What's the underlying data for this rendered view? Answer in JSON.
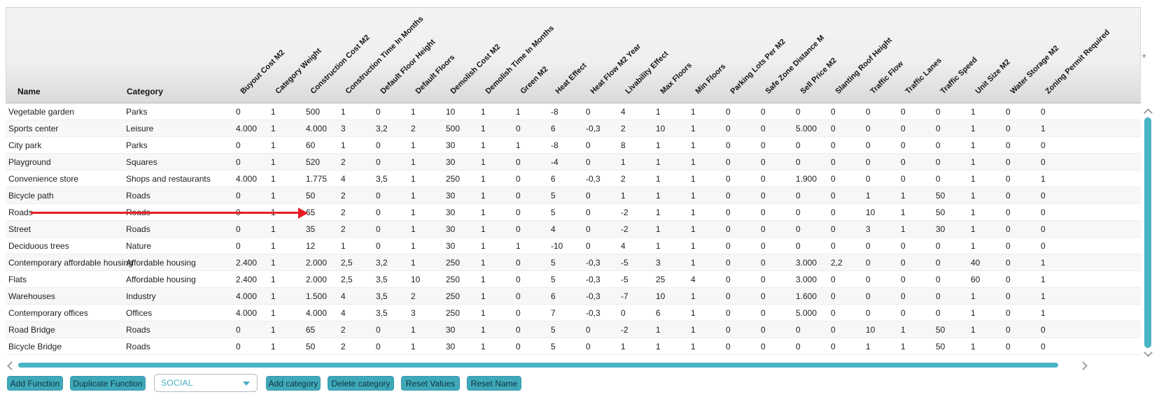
{
  "grid": {
    "name_header": "Name",
    "category_header": "Category",
    "columns": [
      "Buyout Cost M2",
      "Category Weight",
      "Construction Cost M2",
      "Construction Time In Months",
      "Default Floor Height",
      "Default Floors",
      "Demolish Cost M2",
      "Demolish Time In Months",
      "Green M2",
      "Heat Effect",
      "Heat Flow M2 Year",
      "Livability Effect",
      "Max Floors",
      "Min Floors",
      "Parking Lots Per M2",
      "Safe Zone Distance M",
      "Sell Price M2",
      "Slanting Roof Height",
      "Traffic Flow",
      "Traffic Lanes",
      "Traffic Speed",
      "Unit Size M2",
      "Water Storage M2",
      "Zoning Permit Required"
    ],
    "rows": [
      {
        "name": "Vegetable garden",
        "category": "Parks",
        "values": [
          "0",
          "1",
          "500",
          "1",
          "0",
          "1",
          "10",
          "1",
          "1",
          "-8",
          "0",
          "4",
          "1",
          "1",
          "0",
          "0",
          "0",
          "0",
          "0",
          "0",
          "0",
          "1",
          "0",
          "0"
        ]
      },
      {
        "name": "Sports center",
        "category": "Leisure",
        "values": [
          "4.000",
          "1",
          "4.000",
          "3",
          "3,2",
          "2",
          "500",
          "1",
          "0",
          "6",
          "-0,3",
          "2",
          "10",
          "1",
          "0",
          "0",
          "5.000",
          "0",
          "0",
          "0",
          "0",
          "1",
          "0",
          "1"
        ]
      },
      {
        "name": "City park",
        "category": "Parks",
        "values": [
          "0",
          "1",
          "60",
          "1",
          "0",
          "1",
          "30",
          "1",
          "1",
          "-8",
          "0",
          "8",
          "1",
          "1",
          "0",
          "0",
          "0",
          "0",
          "0",
          "0",
          "0",
          "1",
          "0",
          "0"
        ]
      },
      {
        "name": "Playground",
        "category": "Squares",
        "values": [
          "0",
          "1",
          "520",
          "2",
          "0",
          "1",
          "30",
          "1",
          "0",
          "-4",
          "0",
          "1",
          "1",
          "1",
          "0",
          "0",
          "0",
          "0",
          "0",
          "0",
          "0",
          "1",
          "0",
          "0"
        ]
      },
      {
        "name": "Convenience store",
        "category": "Shops and restaurants",
        "values": [
          "4.000",
          "1",
          "1.775",
          "4",
          "3,5",
          "1",
          "250",
          "1",
          "0",
          "6",
          "-0,3",
          "2",
          "1",
          "1",
          "0",
          "0",
          "1.900",
          "0",
          "0",
          "0",
          "0",
          "1",
          "0",
          "1"
        ]
      },
      {
        "name": "Bicycle path",
        "category": "Roads",
        "values": [
          "0",
          "1",
          "50",
          "2",
          "0",
          "1",
          "30",
          "1",
          "0",
          "5",
          "0",
          "1",
          "1",
          "1",
          "0",
          "0",
          "0",
          "0",
          "1",
          "1",
          "50",
          "1",
          "0",
          "0"
        ]
      },
      {
        "name": "Roads",
        "category": "Roads",
        "values": [
          "0",
          "1",
          "65",
          "2",
          "0",
          "1",
          "30",
          "1",
          "0",
          "5",
          "0",
          "-2",
          "1",
          "1",
          "0",
          "0",
          "0",
          "0",
          "10",
          "1",
          "50",
          "1",
          "0",
          "0"
        ]
      },
      {
        "name": "Street",
        "category": "Roads",
        "values": [
          "0",
          "1",
          "35",
          "2",
          "0",
          "1",
          "30",
          "1",
          "0",
          "4",
          "0",
          "-2",
          "1",
          "1",
          "0",
          "0",
          "0",
          "0",
          "3",
          "1",
          "30",
          "1",
          "0",
          "0"
        ]
      },
      {
        "name": "Deciduous trees",
        "category": "Nature",
        "values": [
          "0",
          "1",
          "12",
          "1",
          "0",
          "1",
          "30",
          "1",
          "1",
          "-10",
          "0",
          "4",
          "1",
          "1",
          "0",
          "0",
          "0",
          "0",
          "0",
          "0",
          "0",
          "1",
          "0",
          "0"
        ]
      },
      {
        "name": "Contemporary affordable housing",
        "category": "Affordable housing",
        "values": [
          "2.400",
          "1",
          "2.000",
          "2,5",
          "3,2",
          "1",
          "250",
          "1",
          "0",
          "5",
          "-0,3",
          "-5",
          "3",
          "1",
          "0",
          "0",
          "3.000",
          "2,2",
          "0",
          "0",
          "0",
          "40",
          "0",
          "1"
        ]
      },
      {
        "name": "Flats",
        "category": "Affordable housing",
        "values": [
          "2.400",
          "1",
          "2.000",
          "2,5",
          "3,5",
          "10",
          "250",
          "1",
          "0",
          "5",
          "-0,3",
          "-5",
          "25",
          "4",
          "0",
          "0",
          "3.000",
          "0",
          "0",
          "0",
          "0",
          "60",
          "0",
          "1"
        ]
      },
      {
        "name": "Warehouses",
        "category": "Industry",
        "values": [
          "4.000",
          "1",
          "1.500",
          "4",
          "3,5",
          "2",
          "250",
          "1",
          "0",
          "6",
          "-0,3",
          "-7",
          "10",
          "1",
          "0",
          "0",
          "1.600",
          "0",
          "0",
          "0",
          "0",
          "1",
          "0",
          "1"
        ]
      },
      {
        "name": "Contemporary offices",
        "category": "Offices",
        "values": [
          "4.000",
          "1",
          "4.000",
          "4",
          "3,5",
          "3",
          "250",
          "1",
          "0",
          "7",
          "-0,3",
          "0",
          "6",
          "1",
          "0",
          "0",
          "5.000",
          "0",
          "0",
          "0",
          "0",
          "1",
          "0",
          "1"
        ]
      },
      {
        "name": "Road Bridge",
        "category": "Roads",
        "values": [
          "0",
          "1",
          "65",
          "2",
          "0",
          "1",
          "30",
          "1",
          "0",
          "5",
          "0",
          "-2",
          "1",
          "1",
          "0",
          "0",
          "0",
          "0",
          "10",
          "1",
          "50",
          "1",
          "0",
          "0"
        ]
      },
      {
        "name": "Bicycle Bridge",
        "category": "Roads",
        "values": [
          "0",
          "1",
          "50",
          "2",
          "0",
          "1",
          "30",
          "1",
          "0",
          "5",
          "0",
          "1",
          "1",
          "1",
          "0",
          "0",
          "0",
          "0",
          "1",
          "1",
          "50",
          "1",
          "0",
          "0"
        ]
      }
    ]
  },
  "annotation": {
    "type": "red-arrow",
    "points_from": "Roads row name",
    "points_to": "Construction Cost M2 value 65",
    "color": "#ec1c24"
  },
  "icons": {
    "plus_icon": "+",
    "dropdown_caret": "caret-down-triangle",
    "scroll_up": "chevron-up",
    "scroll_down": "chevron-down",
    "scroll_left": "chevron-left",
    "scroll_right": "chevron-right"
  },
  "toolbar": {
    "add_function": "Add Function",
    "duplicate_function": "Duplicate Function",
    "category_dropdown_value": "SOCIAL",
    "add_category": "Add category",
    "delete_category": "Delete category",
    "reset_values": "Reset Values",
    "reset_name": "Reset Name"
  },
  "colors": {
    "accent_teal": "#3fa9ba",
    "scrollbar_teal": "#49b4c4",
    "dropdown_text_teal": "#49b0c2",
    "arrow_red": "#ec1c24",
    "header_gray": "#dadada"
  }
}
